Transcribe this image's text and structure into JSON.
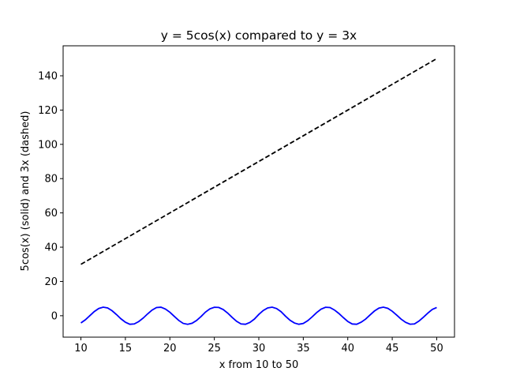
{
  "chart_data": {
    "type": "line",
    "title": "y = 5cos(x) compared to y = 3x",
    "xlabel": "x from 10 to 50",
    "ylabel": "5cos(x) (solid) and 3x (dashed)",
    "xlim": [
      8,
      52
    ],
    "ylim": [
      -12.5,
      157.5
    ],
    "x_ticks": [
      10,
      15,
      20,
      25,
      30,
      35,
      40,
      45,
      50
    ],
    "y_ticks": [
      0,
      20,
      40,
      60,
      80,
      100,
      120,
      140
    ],
    "grid": false,
    "series": [
      {
        "style": "solid",
        "color": "#0000ff",
        "x": [
          10,
          10.5,
          11,
          11.5,
          12,
          12.5,
          13,
          13.5,
          14,
          14.5,
          15,
          15.5,
          16,
          16.5,
          17,
          17.5,
          18,
          18.5,
          19,
          19.5,
          20,
          20.5,
          21,
          21.5,
          22,
          22.5,
          23,
          23.5,
          24,
          24.5,
          25,
          25.5,
          26,
          26.5,
          27,
          27.5,
          28,
          28.5,
          29,
          29.5,
          30,
          30.5,
          31,
          31.5,
          32,
          32.5,
          33,
          33.5,
          34,
          34.5,
          35,
          35.5,
          36,
          36.5,
          37,
          37.5,
          38,
          38.5,
          39,
          39.5,
          40,
          40.5,
          41,
          41.5,
          42,
          42.5,
          43,
          43.5,
          44,
          44.5,
          45,
          45.5,
          46,
          46.5,
          47,
          47.5,
          48,
          48.5,
          49,
          49.5,
          50
        ],
        "values": [
          -4.2,
          -2.37,
          0.02,
          2.42,
          4.22,
          4.99,
          4.54,
          2.92,
          0.68,
          -1.8,
          -3.8,
          -4.97,
          -4.79,
          -3.41,
          -1.38,
          1.08,
          3.3,
          4.8,
          4.98,
          3.89,
          2.04,
          -0.38,
          -2.74,
          -4.47,
          -5,
          -4.37,
          -2.77,
          -0.49,
          2.12,
          4.02,
          4.96,
          4.83,
          3.61,
          1.54,
          -0.96,
          -3.25,
          -4.78,
          -4.98,
          -3.9,
          -1.97,
          0.77,
          3.05,
          4.57,
          4.99,
          4.17,
          2.38,
          -0.26,
          -2.61,
          -4.24,
          -4.98,
          -4.52,
          -2.89,
          -0.64,
          1.82,
          3.83,
          4.95,
          4.78,
          3.36,
          1.33,
          -1.09,
          -3.33,
          -4.81,
          -4.98,
          -3.8,
          -1.99,
          0.43,
          2.75,
          4.46,
          4.99,
          4.34,
          2.63,
          0.37,
          -1.98,
          -3.84,
          -4.96,
          -4.77,
          -3.12,
          -0.9,
          1.5,
          3.66,
          4.82
        ]
      },
      {
        "style": "dashed",
        "color": "#000000",
        "x": [
          10,
          50
        ],
        "values": [
          30,
          150
        ]
      }
    ]
  }
}
